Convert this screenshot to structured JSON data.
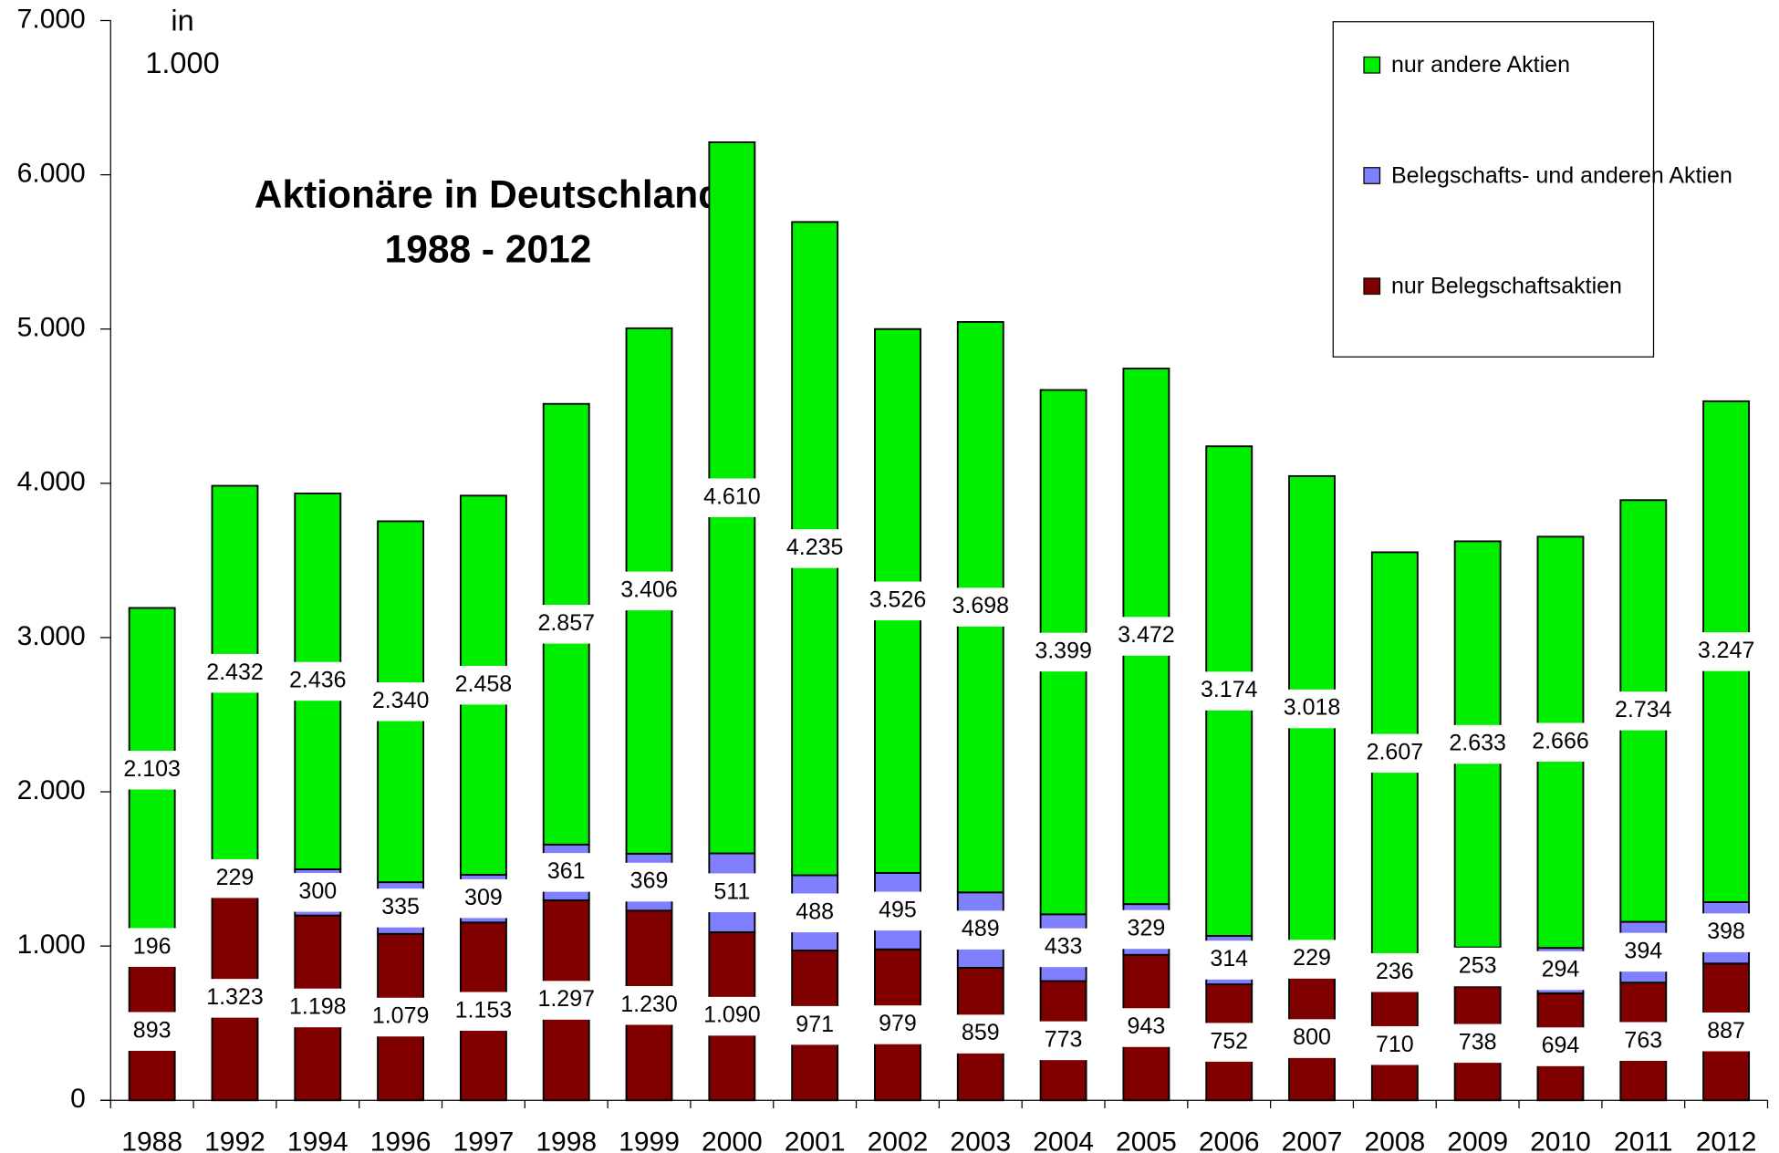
{
  "chart_data": {
    "type": "stacked_bar",
    "title": "Aktionäre in Deutschland",
    "subtitle": "1988 - 2012",
    "annotations": [
      "in",
      "1.000"
    ],
    "categories": [
      "1988",
      "1992",
      "1994",
      "1996",
      "1997",
      "1998",
      "1999",
      "2000",
      "2001",
      "2002",
      "2003",
      "2004",
      "2005",
      "2006",
      "2007",
      "2008",
      "2009",
      "2010",
      "2011",
      "2012"
    ],
    "series": [
      {
        "name": "nur Belegschaftsaktien",
        "color": "#800000",
        "values": [
          893,
          1323,
          1198,
          1079,
          1153,
          1297,
          1230,
          1090,
          971,
          979,
          859,
          773,
          943,
          752,
          800,
          710,
          738,
          694,
          763,
          887
        ],
        "value_labels": [
          "893",
          "1.323",
          "1.198",
          "1.079",
          "1.153",
          "1.297",
          "1.230",
          "1.090",
          "971",
          "979",
          "859",
          "773",
          "943",
          "752",
          "800",
          "710",
          "738",
          "694",
          "763",
          "887"
        ]
      },
      {
        "name": "Belegschafts- und anderen Aktien",
        "color": "#8080ff",
        "values": [
          196,
          229,
          300,
          335,
          309,
          361,
          369,
          511,
          488,
          495,
          489,
          433,
          329,
          314,
          229,
          236,
          253,
          294,
          394,
          398
        ],
        "value_labels": [
          "196",
          "229",
          "300",
          "335",
          "309",
          "361",
          "369",
          "511",
          "488",
          "495",
          "489",
          "433",
          "329",
          "314",
          "229",
          "236",
          "253",
          "294",
          "394",
          "398"
        ]
      },
      {
        "name": "nur andere Aktien",
        "color": "#00ee00",
        "values": [
          2103,
          2432,
          2436,
          2340,
          2458,
          2857,
          3406,
          4610,
          4235,
          3526,
          3698,
          3399,
          3472,
          3174,
          3018,
          2607,
          2633,
          2666,
          2734,
          3247
        ],
        "value_labels": [
          "2.103",
          "2.432",
          "2.436",
          "2.340",
          "2.458",
          "2.857",
          "3.406",
          "4.610",
          "4.235",
          "3.526",
          "3.698",
          "3.399",
          "3.472",
          "3.174",
          "3.018",
          "2.607",
          "2.633",
          "2.666",
          "2.734",
          "3.247"
        ]
      }
    ],
    "ylim": [
      0,
      7000
    ],
    "yticks": [
      0,
      {
        "value": 1000,
        "label": "1.000"
      },
      {
        "value": 2000,
        "label": "2.000"
      },
      {
        "value": 3000,
        "label": "3.000"
      },
      {
        "value": 4000,
        "label": "4.000"
      },
      {
        "value": 5000,
        "label": "5.000"
      },
      {
        "value": 6000,
        "label": "6.000"
      },
      {
        "value": 7000,
        "label": "7.000"
      }
    ],
    "grid": false,
    "legend": "upper right"
  }
}
